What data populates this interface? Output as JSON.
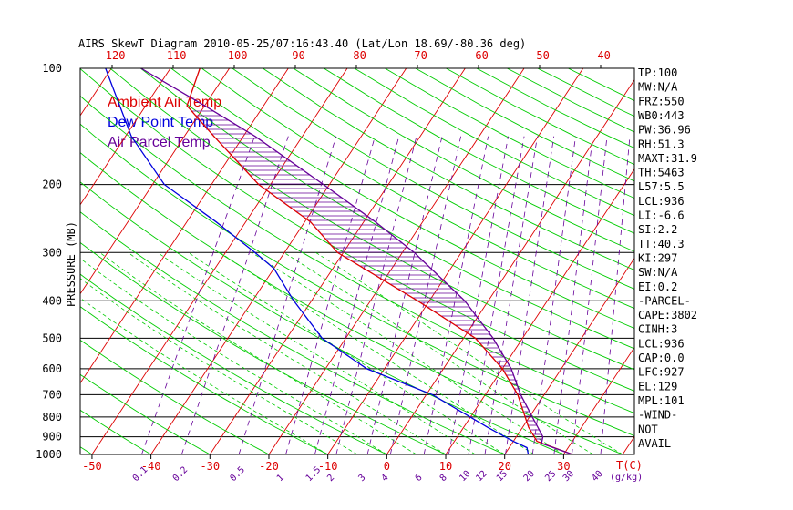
{
  "title": "AIRS SkewT Diagram 2010-05-25/07:16:43.40 (Lat/Lon 18.69/-80.36 deg)",
  "legend": [
    {
      "label": "Ambient Air Temp",
      "color": "#dd0000"
    },
    {
      "label": "Dew Point Temp",
      "color": "#0000dd"
    },
    {
      "label": "Air Parcel Temp",
      "color": "#660099"
    }
  ],
  "colors": {
    "temp": "#dd0000",
    "dewpoint": "#0000dd",
    "parcel": "#660099",
    "isotherm": "#dd0000",
    "dry_adiabat": "#00cc00",
    "moist_adiabat": "#00cc00",
    "mixing_ratio": "#660099",
    "text": "#000000",
    "axis_tick_text": "#dd0000",
    "mixing_text": "#660099"
  },
  "chart_data": {
    "type": "line",
    "title": "AIRS SkewT Diagram 2010-05-25/07:16:43.40 (Lat/Lon 18.69/-80.36 deg)",
    "ylabel": "PRESSURE (MB)",
    "xlabel": "T(C)",
    "mixing_label": "(g/kg)",
    "y_scale": "log-reversed",
    "ylim": [
      1000,
      100
    ],
    "xlim_bottom": [
      -52,
      42
    ],
    "y_ticks": [
      100,
      200,
      300,
      400,
      500,
      600,
      700,
      800,
      900,
      1000
    ],
    "bottom_ticks": [
      -50,
      -40,
      -30,
      -20,
      -10,
      0,
      10,
      20,
      30
    ],
    "top_ticks": [
      -120,
      -110,
      -100,
      -90,
      -80,
      -70,
      -60,
      -50,
      -40
    ],
    "mixing_ratio_labels": [
      "0.1",
      "0.2",
      "0.5",
      "1",
      "1.5",
      "2",
      "3",
      "4",
      "6",
      "8",
      "10",
      "12",
      "15",
      "20",
      "25",
      "30",
      "40"
    ],
    "series": [
      {
        "name": "Ambient Air Temp",
        "points": [
          [
            1000,
            31.5
          ],
          [
            925,
            24
          ],
          [
            850,
            21
          ],
          [
            700,
            15.5
          ],
          [
            600,
            10
          ],
          [
            500,
            2
          ],
          [
            400,
            -12
          ],
          [
            300,
            -31
          ],
          [
            250,
            -39
          ],
          [
            200,
            -52
          ],
          [
            150,
            -65
          ],
          [
            125,
            -73
          ],
          [
            100,
            -75
          ]
        ]
      },
      {
        "name": "Dew Point Temp",
        "points": [
          [
            1000,
            24
          ],
          [
            960,
            23
          ],
          [
            925,
            20
          ],
          [
            850,
            14
          ],
          [
            700,
            1
          ],
          [
            600,
            -13
          ],
          [
            500,
            -24
          ],
          [
            400,
            -33
          ],
          [
            330,
            -40
          ],
          [
            300,
            -45
          ],
          [
            250,
            -55
          ],
          [
            200,
            -68
          ],
          [
            150,
            -79
          ],
          [
            100,
            -91
          ]
        ]
      },
      {
        "name": "Air Parcel Temp",
        "points": [
          [
            1000,
            31.5
          ],
          [
            936,
            25
          ],
          [
            900,
            24.5
          ],
          [
            800,
            20.5
          ],
          [
            700,
            16
          ],
          [
            600,
            11.5
          ],
          [
            500,
            5
          ],
          [
            400,
            -4
          ],
          [
            300,
            -18
          ],
          [
            250,
            -28
          ],
          [
            200,
            -41
          ],
          [
            150,
            -58
          ],
          [
            125,
            -70
          ],
          [
            100,
            -85
          ]
        ]
      }
    ]
  },
  "indices": [
    "TP:100",
    "MW:N/A",
    "FRZ:550",
    "WB0:443",
    "PW:36.96",
    "RH:51.3",
    "MAXT:31.9",
    "TH:5463",
    "L57:5.5",
    "LCL:936",
    "LI:-6.6",
    "SI:2.2",
    "TT:40.3",
    "KI:297",
    "SW:N/A",
    "EI:0.2",
    "-PARCEL-",
    "CAPE:3802",
    "CINH:3",
    "LCL:936",
    "CAP:0.0",
    "LFC:927",
    "EL:129",
    "MPL:101",
    "-WIND-",
    "NOT",
    "AVAIL"
  ]
}
